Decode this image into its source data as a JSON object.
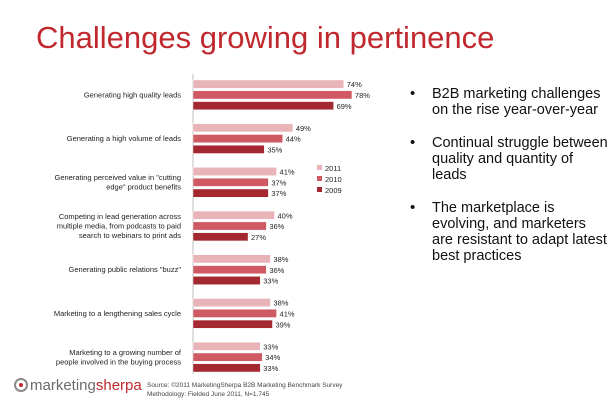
{
  "slide": {
    "title": "Challenges growing in pertinence",
    "bullets": [
      "B2B marketing challenges on the rise year-over-year",
      "Continual struggle between quality and quantity of leads",
      "The marketplace is evolving, and marketers are resistant to adapt latest best practices"
    ],
    "logo": {
      "part1": "marketing",
      "part2": "sherpa"
    },
    "source": {
      "line1": "Source: ©2011 MarketingSherpa B2B Marketing Benchmark Survey",
      "line2": "Methodology: Fielded June 2011, N=1,745"
    }
  },
  "chart_data": {
    "type": "bar",
    "orientation": "horizontal",
    "categories": [
      [
        "Generating high quality leads"
      ],
      [
        "Generating a high volume of leads"
      ],
      [
        "Generating perceived value in \"cutting",
        "edge\" product benefits"
      ],
      [
        "Competing in lead generation across",
        "multiple media, from podcasts to paid",
        "search to webinars to print ads"
      ],
      [
        "Generating public relations \"buzz\""
      ],
      [
        "Marketing to a lengthening sales cycle"
      ],
      [
        "Marketing to a growing number of",
        "people involved in the buying process"
      ]
    ],
    "series": [
      {
        "name": "2011",
        "color": "#e8b4b8",
        "values": [
          74,
          49,
          41,
          40,
          38,
          38,
          33
        ]
      },
      {
        "name": "2010",
        "color": "#cf5a64",
        "values": [
          78,
          44,
          37,
          36,
          36,
          41,
          34
        ]
      },
      {
        "name": "2009",
        "color": "#a3282f",
        "values": [
          69,
          35,
          37,
          27,
          33,
          39,
          33
        ]
      }
    ],
    "value_suffix": "%",
    "xlim": [
      0,
      80
    ],
    "grid": false,
    "legend": "right"
  }
}
